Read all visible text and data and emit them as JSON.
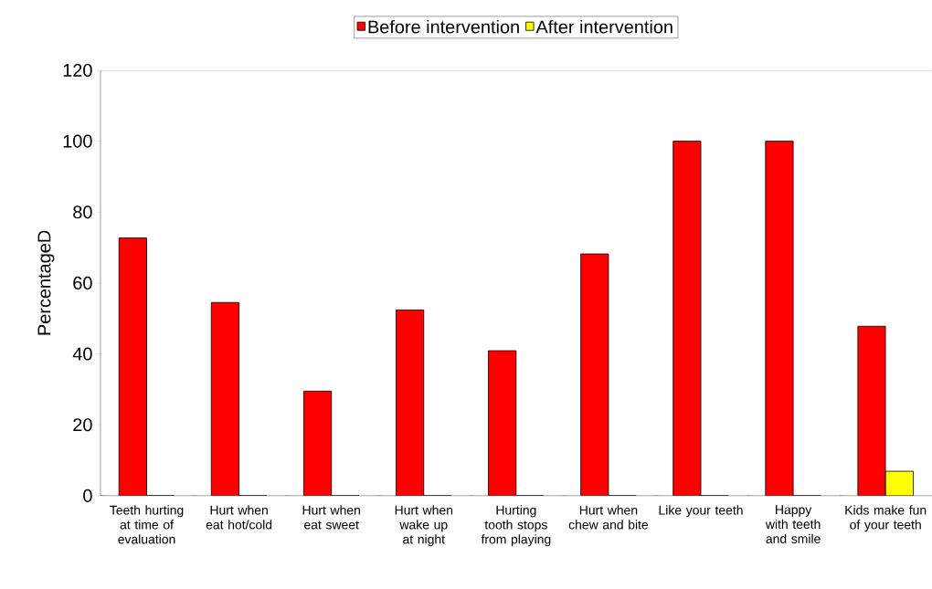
{
  "chart_data": {
    "type": "bar",
    "ylabel": "PercentageD",
    "categories": [
      "Teeth hurting at time of evaluation",
      "Hurt when eat hot/cold",
      "Hurt when eat sweet",
      "Hurt when wake up at night",
      "Hurting tooth stops from playing",
      "Hurt when chew and bite",
      "Like your teeth",
      "Happy with teeth and smile",
      "Kids make fun of your teeth"
    ],
    "series": [
      {
        "name": "Before intervention",
        "color": "#ff0000",
        "values": [
          72.7,
          54.5,
          29.5,
          52.4,
          40.9,
          68.2,
          100,
          100,
          47.8
        ]
      },
      {
        "name": "After intervention",
        "color": "#ffff00",
        "values": [
          0,
          0,
          0,
          0,
          0,
          0,
          0,
          0,
          6.9
        ]
      }
    ],
    "ylim": [
      0,
      120
    ],
    "yticks": [
      0,
      20,
      40,
      60,
      80,
      100,
      120
    ],
    "grid": false,
    "legend": "top"
  }
}
